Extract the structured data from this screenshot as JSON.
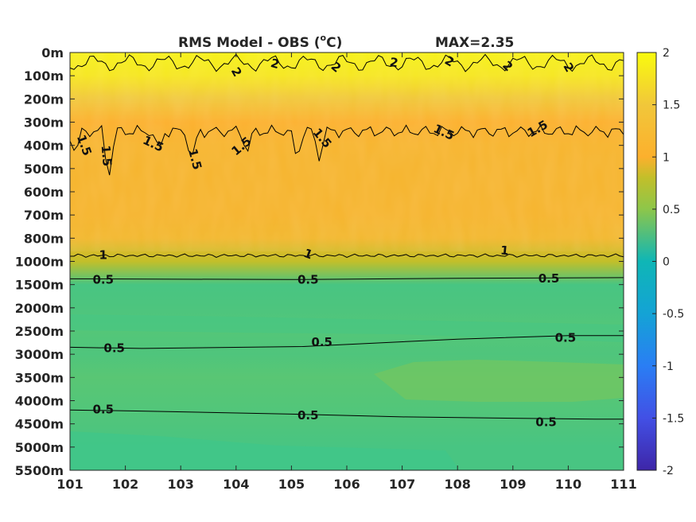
{
  "chart_data": {
    "type": "heatmap",
    "title_prefix": "RMS Model - OBS (",
    "title_sup": "o",
    "title_suffix": "C)",
    "title_max": "MAX=2.35",
    "x_ticks": [
      "101",
      "102",
      "103",
      "104",
      "105",
      "106",
      "107",
      "108",
      "109",
      "110",
      "111"
    ],
    "y_ticks": [
      "0m",
      "100m",
      "200m",
      "300m",
      "400m",
      "500m",
      "600m",
      "700m",
      "800m",
      "1000m",
      "1500m",
      "2000m",
      "2500m",
      "3000m",
      "3500m",
      "4000m",
      "4500m",
      "5000m",
      "5500m"
    ],
    "colorbar": {
      "ticks": [
        "2",
        "1.5",
        "1",
        "0.5",
        "0",
        "-0.5",
        "-1",
        "-1.5",
        "-2"
      ],
      "min": -2,
      "max": 2
    },
    "depth_profile": [
      {
        "depth": "0m",
        "value": 1.95
      },
      {
        "depth": "100m",
        "value": 1.9
      },
      {
        "depth": "200m",
        "value": 1.75
      },
      {
        "depth": "300m",
        "value": 1.5
      },
      {
        "depth": "400m",
        "value": 1.4
      },
      {
        "depth": "500m",
        "value": 1.38
      },
      {
        "depth": "600m",
        "value": 1.38
      },
      {
        "depth": "700m",
        "value": 1.38
      },
      {
        "depth": "800m",
        "value": 1.3
      },
      {
        "depth": "1000m",
        "value": 1.0
      },
      {
        "depth": "1500m",
        "value": 0.55
      },
      {
        "depth": "2000m",
        "value": 0.57
      },
      {
        "depth": "2500m",
        "value": 0.6
      },
      {
        "depth": "3000m",
        "value": 0.58
      },
      {
        "depth": "3500m",
        "value": 0.62
      },
      {
        "depth": "4000m",
        "value": 0.6
      },
      {
        "depth": "4500m",
        "value": 0.58
      },
      {
        "depth": "5000m",
        "value": 0.55
      },
      {
        "depth": "5500m",
        "value": 0.55
      }
    ],
    "contour_labels": [
      {
        "text": "2",
        "x": 104.0,
        "depth_index": 0.85,
        "rotate": 60
      },
      {
        "text": "2",
        "x": 104.7,
        "depth_index": 0.5,
        "rotate": 15
      },
      {
        "text": "2",
        "x": 105.8,
        "depth_index": 0.65,
        "rotate": 40
      },
      {
        "text": "2",
        "x": 106.85,
        "depth_index": 0.45,
        "rotate": 10
      },
      {
        "text": "2",
        "x": 107.85,
        "depth_index": 0.4,
        "rotate": 30
      },
      {
        "text": "2",
        "x": 108.9,
        "depth_index": 0.6,
        "rotate": 45
      },
      {
        "text": "2",
        "x": 110.0,
        "depth_index": 0.65,
        "rotate": 60
      },
      {
        "text": "1.5",
        "x": 101.25,
        "depth_index": 4.0,
        "rotate": 70
      },
      {
        "text": "1.5",
        "x": 101.65,
        "depth_index": 4.45,
        "rotate": 85
      },
      {
        "text": "1.5",
        "x": 102.5,
        "depth_index": 3.95,
        "rotate": 25
      },
      {
        "text": "1.5",
        "x": 103.25,
        "depth_index": 4.6,
        "rotate": 75
      },
      {
        "text": "1.5",
        "x": 104.1,
        "depth_index": 4.05,
        "rotate": -40
      },
      {
        "text": "1.5",
        "x": 105.55,
        "depth_index": 3.7,
        "rotate": 50
      },
      {
        "text": "1.5",
        "x": 107.75,
        "depth_index": 3.45,
        "rotate": 25
      },
      {
        "text": "1.5",
        "x": 109.45,
        "depth_index": 3.3,
        "rotate": -30
      },
      {
        "text": "1",
        "x": 101.6,
        "depth_index": 8.75,
        "rotate": 0
      },
      {
        "text": "1",
        "x": 105.3,
        "depth_index": 8.7,
        "rotate": 20
      },
      {
        "text": "1",
        "x": 108.85,
        "depth_index": 8.55,
        "rotate": 5
      },
      {
        "text": "0.5",
        "x": 101.6,
        "depth_index": 9.8,
        "rotate": 0
      },
      {
        "text": "0.5",
        "x": 105.3,
        "depth_index": 9.8,
        "rotate": 0
      },
      {
        "text": "0.5",
        "x": 109.65,
        "depth_index": 9.75,
        "rotate": 0
      },
      {
        "text": "0.5",
        "x": 101.8,
        "depth_index": 12.75,
        "rotate": 0
      },
      {
        "text": "0.5",
        "x": 105.55,
        "depth_index": 12.5,
        "rotate": 0
      },
      {
        "text": "0.5",
        "x": 109.95,
        "depth_index": 12.3,
        "rotate": 0
      },
      {
        "text": "0.5",
        "x": 101.6,
        "depth_index": 15.4,
        "rotate": 0
      },
      {
        "text": "0.5",
        "x": 105.3,
        "depth_index": 15.65,
        "rotate": 0
      },
      {
        "text": "0.5",
        "x": 109.6,
        "depth_index": 15.95,
        "rotate": 0
      }
    ],
    "contour_lines": [
      {
        "level": 0.5,
        "points": [
          [
            101,
            9.75
          ],
          [
            105,
            9.78
          ],
          [
            108,
            9.73
          ],
          [
            111,
            9.7
          ]
        ]
      },
      {
        "level": 0.5,
        "points": [
          [
            101,
            12.7
          ],
          [
            102.3,
            12.75
          ],
          [
            105.2,
            12.67
          ],
          [
            108,
            12.35
          ],
          [
            110,
            12.2
          ],
          [
            111,
            12.2
          ]
        ]
      },
      {
        "level": 0.5,
        "points": [
          [
            101,
            15.4
          ],
          [
            102.3,
            15.45
          ],
          [
            105,
            15.58
          ],
          [
            107,
            15.7
          ],
          [
            110.5,
            15.8
          ],
          [
            111,
            15.8
          ]
        ]
      }
    ]
  }
}
